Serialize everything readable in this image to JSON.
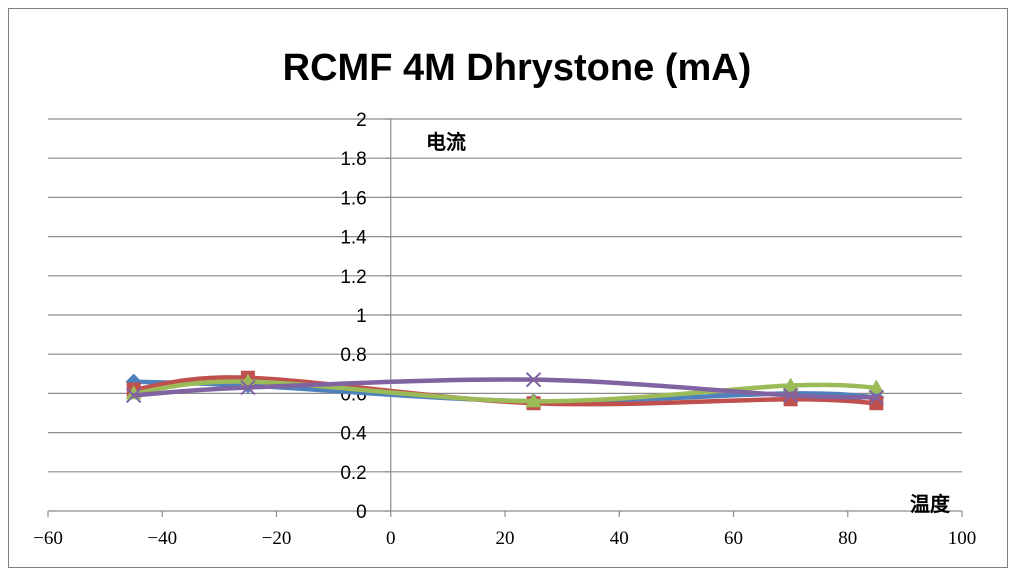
{
  "chart_data": {
    "type": "line",
    "title": "RCMF 4M Dhrystone (mA)",
    "xlabel": "温度",
    "ylabel": "电流",
    "xlim": [
      -60,
      100
    ],
    "ylim": [
      0,
      2
    ],
    "xticks": [
      "−60",
      "−40",
      "−20",
      "0",
      "20",
      "40",
      "60",
      "80",
      "100"
    ],
    "yticks": [
      "0",
      "0.2",
      "0.4",
      "0.6",
      "0.8",
      "1",
      "1.2",
      "1.4",
      "1.6",
      "1.8",
      "2"
    ],
    "grid": true,
    "legend": "none",
    "series": [
      {
        "marker": "diamond",
        "color": "#4f81bd",
        "x": [
          -45,
          -25,
          25,
          70,
          85
        ],
        "y": [
          0.66,
          0.64,
          0.56,
          0.6,
          0.58
        ]
      },
      {
        "marker": "square",
        "color": "#c0504d",
        "x": [
          -45,
          -25,
          25,
          70,
          85
        ],
        "y": [
          0.62,
          0.68,
          0.55,
          0.57,
          0.55
        ]
      },
      {
        "marker": "triangle",
        "color": "#9bbb59",
        "x": [
          -45,
          -25,
          25,
          70,
          85
        ],
        "y": [
          0.6,
          0.66,
          0.56,
          0.64,
          0.63
        ]
      },
      {
        "marker": "x",
        "color": "#8064a2",
        "x": [
          -45,
          -25,
          25,
          70,
          85
        ],
        "y": [
          0.59,
          0.63,
          0.67,
          0.59,
          0.58
        ]
      }
    ]
  }
}
